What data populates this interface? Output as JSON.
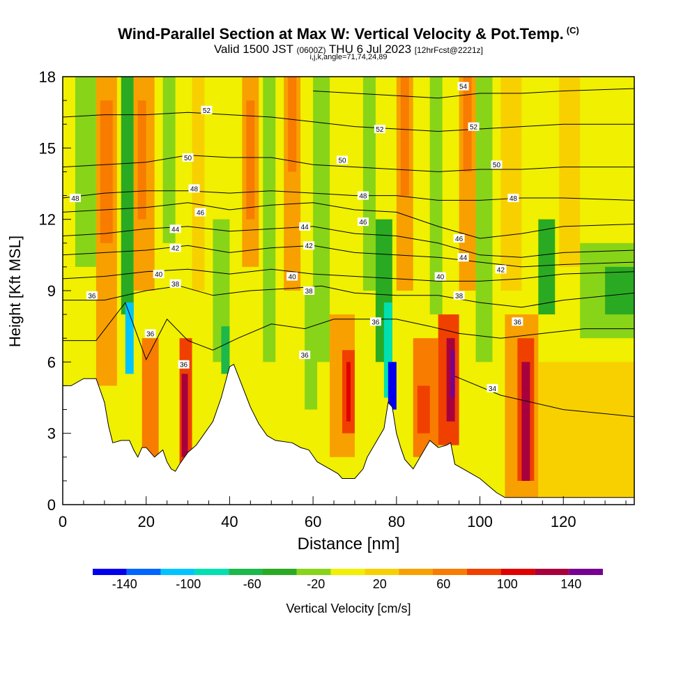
{
  "header": {
    "title": "Wind-Parallel Section at Max W: Vertical Velocity & Pot.Temp.",
    "title_mark": "(C)",
    "valid_prefix": "Valid 1500 JST",
    "valid_zulu": "(0600Z)",
    "valid_date": "THU 6 Jul 2023",
    "forecast_tag": "[12hrFcst@2221z]",
    "subline": "i,j,k,angle=71,74,24,89"
  },
  "chart_data": {
    "type": "heatmap",
    "title": "Wind-Parallel Section at Max W: Vertical Velocity & Pot.Temp.",
    "xlabel": "Distance [nm]",
    "ylabel": "Height [Kft MSL]",
    "xlim": [
      0,
      137
    ],
    "ylim": [
      0,
      18
    ],
    "x_ticks": [
      "0",
      "20",
      "40",
      "60",
      "80",
      "100",
      "120"
    ],
    "y_ticks": [
      "0",
      "3",
      "6",
      "9",
      "12",
      "15",
      "18"
    ],
    "colorbar": {
      "label": "Vertical Velocity [cm/s]",
      "tick_labels": [
        "-140",
        "-100",
        "-60",
        "-20",
        "20",
        "60",
        "100",
        "140"
      ],
      "levels": [
        -160,
        -140,
        -120,
        -100,
        -80,
        -60,
        -40,
        -20,
        0,
        20,
        40,
        60,
        80,
        100,
        120,
        140,
        160
      ],
      "colors": [
        "#0000ee",
        "#0066ff",
        "#00c4ff",
        "#00e0b0",
        "#1cb84a",
        "#2aaa22",
        "#88d418",
        "#f0f000",
        "#f8d000",
        "#f8a000",
        "#f87c00",
        "#f04000",
        "#e00000",
        "#a8003c",
        "#780090"
      ]
    },
    "terrain_kft": [
      [
        0,
        5.0
      ],
      [
        2,
        5.0
      ],
      [
        5,
        5.3
      ],
      [
        8,
        5.3
      ],
      [
        10,
        4.3
      ],
      [
        11,
        3.3
      ],
      [
        12,
        2.6
      ],
      [
        14,
        2.7
      ],
      [
        16,
        2.7
      ],
      [
        17,
        2.3
      ],
      [
        18,
        2.0
      ],
      [
        19,
        2.4
      ],
      [
        20,
        2.4
      ],
      [
        22,
        2.0
      ],
      [
        24,
        2.3
      ],
      [
        25,
        1.8
      ],
      [
        26,
        1.5
      ],
      [
        27,
        1.4
      ],
      [
        28,
        1.7
      ],
      [
        30,
        2.2
      ],
      [
        32,
        2.5
      ],
      [
        34,
        3.0
      ],
      [
        36,
        3.5
      ],
      [
        38,
        4.5
      ],
      [
        40,
        5.8
      ],
      [
        41,
        5.9
      ],
      [
        43,
        5.0
      ],
      [
        45,
        4.1
      ],
      [
        47,
        3.4
      ],
      [
        49,
        2.9
      ],
      [
        51,
        2.7
      ],
      [
        55,
        2.6
      ],
      [
        57,
        2.4
      ],
      [
        59,
        2.3
      ],
      [
        61,
        1.8
      ],
      [
        63,
        1.6
      ],
      [
        64,
        1.5
      ],
      [
        66,
        1.3
      ],
      [
        67,
        1.1
      ],
      [
        70,
        1.1
      ],
      [
        72,
        1.5
      ],
      [
        73,
        2.0
      ],
      [
        75,
        2.6
      ],
      [
        77,
        3.2
      ],
      [
        78,
        4.3
      ],
      [
        79,
        4.1
      ],
      [
        80,
        3.0
      ],
      [
        81,
        2.4
      ],
      [
        82,
        1.9
      ],
      [
        83,
        1.7
      ],
      [
        84,
        1.5
      ],
      [
        86,
        2.1
      ],
      [
        88,
        2.7
      ],
      [
        90,
        2.4
      ],
      [
        92,
        2.5
      ],
      [
        93,
        2.6
      ],
      [
        94,
        1.7
      ],
      [
        96,
        1.5
      ],
      [
        98,
        1.3
      ],
      [
        100,
        1.1
      ],
      [
        102,
        0.8
      ],
      [
        104,
        0.5
      ],
      [
        106,
        0.3
      ],
      [
        137,
        0.3
      ]
    ],
    "velocity_cells": [
      {
        "x0": 0,
        "x1": 137,
        "y0": 0,
        "y1": 18,
        "v": -10
      },
      {
        "x0": 3,
        "x1": 8,
        "y0": 10,
        "y1": 18,
        "v": -30
      },
      {
        "x0": 8,
        "x1": 13,
        "y0": 5,
        "y1": 18,
        "v": 30
      },
      {
        "x0": 9,
        "x1": 12,
        "y0": 11,
        "y1": 17,
        "v": 50
      },
      {
        "x0": 14,
        "x1": 17,
        "y0": 8,
        "y1": 18,
        "v": -50
      },
      {
        "x0": 15,
        "x1": 17,
        "y0": 5.5,
        "y1": 8.5,
        "v": -110
      },
      {
        "x0": 17,
        "x1": 22,
        "y0": 9,
        "y1": 18,
        "v": 30
      },
      {
        "x0": 18,
        "x1": 20,
        "y0": 12,
        "y1": 17,
        "v": 50
      },
      {
        "x0": 19,
        "x1": 23,
        "y0": 2,
        "y1": 7,
        "v": 40
      },
      {
        "x0": 24,
        "x1": 27,
        "y0": 11,
        "y1": 18,
        "v": -30
      },
      {
        "x0": 28,
        "x1": 31,
        "y0": 1.5,
        "y1": 7,
        "v": 70
      },
      {
        "x0": 28.5,
        "x1": 30,
        "y0": 2,
        "y1": 5.5,
        "v": 110
      },
      {
        "x0": 31,
        "x1": 34,
        "y0": 9,
        "y1": 18,
        "v": 10
      },
      {
        "x0": 36,
        "x1": 40,
        "y0": 6,
        "y1": 12,
        "v": -30
      },
      {
        "x0": 38,
        "x1": 40,
        "y0": 5.5,
        "y1": 7.5,
        "v": -70
      },
      {
        "x0": 43,
        "x1": 47,
        "y0": 10,
        "y1": 18,
        "v": 30
      },
      {
        "x0": 44,
        "x1": 46,
        "y0": 12,
        "y1": 17,
        "v": 50
      },
      {
        "x0": 48,
        "x1": 51,
        "y0": 6,
        "y1": 18,
        "v": -30
      },
      {
        "x0": 53,
        "x1": 57,
        "y0": 9,
        "y1": 18,
        "v": 30
      },
      {
        "x0": 54,
        "x1": 56,
        "y0": 14,
        "y1": 18,
        "v": 50
      },
      {
        "x0": 58,
        "x1": 61,
        "y0": 4,
        "y1": 9,
        "v": -30
      },
      {
        "x0": 60,
        "x1": 64,
        "y0": 6,
        "y1": 18,
        "v": -30
      },
      {
        "x0": 64,
        "x1": 70,
        "y0": 2,
        "y1": 8,
        "v": 30
      },
      {
        "x0": 67,
        "x1": 70,
        "y0": 3,
        "y1": 6.5,
        "v": 70
      },
      {
        "x0": 68,
        "x1": 69,
        "y0": 3.5,
        "y1": 6,
        "v": 90
      },
      {
        "x0": 72,
        "x1": 75,
        "y0": 9,
        "y1": 18,
        "v": -30
      },
      {
        "x0": 75,
        "x1": 79,
        "y0": 6,
        "y1": 12,
        "v": -50
      },
      {
        "x0": 77,
        "x1": 79,
        "y0": 4.5,
        "y1": 8.5,
        "v": -90
      },
      {
        "x0": 78,
        "x1": 80,
        "y0": 4,
        "y1": 6,
        "v": -150
      },
      {
        "x0": 80,
        "x1": 84,
        "y0": 9,
        "y1": 18,
        "v": 30
      },
      {
        "x0": 81,
        "x1": 83,
        "y0": 13,
        "y1": 18,
        "v": 50
      },
      {
        "x0": 84,
        "x1": 90,
        "y0": 2,
        "y1": 7,
        "v": 50
      },
      {
        "x0": 85,
        "x1": 88,
        "y0": 3,
        "y1": 5,
        "v": 70
      },
      {
        "x0": 88,
        "x1": 91,
        "y0": 8,
        "y1": 18,
        "v": -30
      },
      {
        "x0": 90,
        "x1": 95,
        "y0": 2.5,
        "y1": 8,
        "v": 70
      },
      {
        "x0": 92,
        "x1": 94,
        "y0": 3.5,
        "y1": 7,
        "v": 110
      },
      {
        "x0": 93,
        "x1": 94,
        "y0": 4.5,
        "y1": 6.5,
        "v": 150
      },
      {
        "x0": 95,
        "x1": 99,
        "y0": 9,
        "y1": 18,
        "v": 30
      },
      {
        "x0": 96,
        "x1": 98,
        "y0": 14,
        "y1": 18,
        "v": 50
      },
      {
        "x0": 99,
        "x1": 103,
        "y0": 6,
        "y1": 18,
        "v": -30
      },
      {
        "x0": 105,
        "x1": 110,
        "y0": 9,
        "y1": 18,
        "v": 10
      },
      {
        "x0": 106,
        "x1": 114,
        "y0": 0.3,
        "y1": 8,
        "v": 30
      },
      {
        "x0": 109,
        "x1": 113,
        "y0": 1,
        "y1": 7,
        "v": 70
      },
      {
        "x0": 110,
        "x1": 112,
        "y0": 1,
        "y1": 6,
        "v": 110
      },
      {
        "x0": 114,
        "x1": 118,
        "y0": 8,
        "y1": 12,
        "v": -50
      },
      {
        "x0": 119,
        "x1": 124,
        "y0": 10,
        "y1": 18,
        "v": 10
      },
      {
        "x0": 124,
        "x1": 137,
        "y0": 7,
        "y1": 11,
        "v": -30
      },
      {
        "x0": 130,
        "x1": 137,
        "y0": 8,
        "y1": 10,
        "v": -50
      },
      {
        "x0": 114,
        "x1": 137,
        "y0": 0.3,
        "y1": 6,
        "v": 10
      }
    ],
    "theta_contours": [
      {
        "value": 34,
        "x": [
          94,
          105,
          120,
          137
        ],
        "y": [
          5.4,
          4.6,
          4.0,
          3.7
        ]
      },
      {
        "value": 36,
        "x": [
          0,
          8,
          15,
          20,
          25,
          30,
          36,
          42,
          50,
          58,
          65,
          72,
          80,
          88,
          95,
          105,
          115,
          125,
          137
        ],
        "y": [
          6.9,
          6.9,
          8.5,
          6.1,
          7.8,
          6.9,
          6.5,
          7.0,
          7.6,
          7.4,
          7.8,
          7.8,
          7.8,
          7.5,
          7.2,
          7.0,
          7.2,
          7.4,
          7.4
        ]
      },
      {
        "value": 38,
        "x": [
          0,
          10,
          20,
          28,
          36,
          45,
          55,
          62,
          70,
          80,
          90,
          100,
          110,
          120,
          137
        ],
        "y": [
          8.6,
          8.6,
          9.0,
          9.2,
          8.8,
          9.0,
          9.1,
          9.2,
          8.9,
          8.8,
          8.8,
          8.5,
          8.3,
          8.6,
          8.9
        ]
      },
      {
        "value": 40,
        "x": [
          0,
          10,
          20,
          30,
          40,
          50,
          60,
          70,
          80,
          90,
          100,
          110,
          120,
          137
        ],
        "y": [
          9.5,
          9.6,
          9.8,
          9.9,
          9.7,
          9.9,
          9.7,
          9.6,
          9.5,
          9.4,
          9.4,
          9.5,
          9.7,
          9.8
        ]
      },
      {
        "value": 42,
        "x": [
          0,
          10,
          20,
          30,
          40,
          50,
          60,
          70,
          80,
          90,
          100,
          110,
          120,
          137
        ],
        "y": [
          10.5,
          10.6,
          10.7,
          10.9,
          10.6,
          10.8,
          10.9,
          10.6,
          10.5,
          10.4,
          10.2,
          10.0,
          10.1,
          10.2
        ]
      },
      {
        "value": 44,
        "x": [
          0,
          10,
          20,
          30,
          40,
          50,
          60,
          70,
          80,
          90,
          100,
          110,
          120,
          137
        ],
        "y": [
          11.3,
          11.4,
          11.6,
          11.7,
          11.5,
          11.6,
          11.7,
          11.4,
          11.3,
          11.0,
          10.5,
          10.4,
          10.6,
          10.7
        ]
      },
      {
        "value": 46,
        "x": [
          0,
          10,
          20,
          30,
          40,
          50,
          60,
          70,
          80,
          90,
          100,
          110,
          120,
          137
        ],
        "y": [
          12.3,
          12.4,
          12.5,
          12.7,
          12.4,
          12.6,
          12.7,
          12.4,
          12.3,
          11.7,
          11.2,
          11.4,
          11.7,
          11.8
        ]
      },
      {
        "value": 48,
        "x": [
          0,
          10,
          20,
          30,
          40,
          50,
          60,
          70,
          80,
          90,
          100,
          110,
          120,
          137
        ],
        "y": [
          12.9,
          13.1,
          13.2,
          13.2,
          13.1,
          13.2,
          13.1,
          13.0,
          13.0,
          12.8,
          12.8,
          12.9,
          12.9,
          12.8
        ]
      },
      {
        "value": 50,
        "x": [
          0,
          10,
          20,
          30,
          40,
          50,
          60,
          70,
          80,
          90,
          100,
          110,
          120,
          137
        ],
        "y": [
          14.2,
          14.3,
          14.4,
          14.7,
          14.6,
          14.6,
          14.3,
          14.2,
          14.1,
          14.0,
          14.1,
          14.1,
          14.2,
          14.2
        ]
      },
      {
        "value": 52,
        "x": [
          0,
          10,
          20,
          30,
          40,
          50,
          60,
          70,
          80,
          90,
          100,
          110,
          120,
          137
        ],
        "y": [
          16.3,
          16.4,
          16.4,
          16.5,
          16.4,
          16.3,
          16.1,
          15.9,
          15.8,
          15.7,
          15.8,
          15.9,
          16.0,
          16.0
        ]
      },
      {
        "value": 54,
        "x": [
          60,
          70,
          80,
          90,
          100,
          110,
          120,
          137
        ],
        "y": [
          17.4,
          17.3,
          17.2,
          17.1,
          17.3,
          17.3,
          17.4,
          17.5
        ]
      }
    ],
    "contour_labels": [
      {
        "text": "48",
        "x": 3,
        "y": 12.9
      },
      {
        "text": "52",
        "x": 34.5,
        "y": 16.6
      },
      {
        "text": "50",
        "x": 30,
        "y": 14.6
      },
      {
        "text": "48",
        "x": 31.5,
        "y": 13.3
      },
      {
        "text": "46",
        "x": 33,
        "y": 12.3
      },
      {
        "text": "44",
        "x": 27,
        "y": 11.6
      },
      {
        "text": "42",
        "x": 27,
        "y": 10.8
      },
      {
        "text": "40",
        "x": 23,
        "y": 9.7
      },
      {
        "text": "38",
        "x": 27,
        "y": 9.3
      },
      {
        "text": "36",
        "x": 7,
        "y": 8.8
      },
      {
        "text": "36",
        "x": 21,
        "y": 7.2
      },
      {
        "text": "36",
        "x": 29,
        "y": 5.9
      },
      {
        "text": "44",
        "x": 58,
        "y": 11.7
      },
      {
        "text": "42",
        "x": 59,
        "y": 10.9
      },
      {
        "text": "40",
        "x": 55,
        "y": 9.6
      },
      {
        "text": "38",
        "x": 59,
        "y": 9.0
      },
      {
        "text": "36",
        "x": 58,
        "y": 6.3
      },
      {
        "text": "50",
        "x": 67,
        "y": 14.5
      },
      {
        "text": "48",
        "x": 72,
        "y": 13.0
      },
      {
        "text": "46",
        "x": 72,
        "y": 11.9
      },
      {
        "text": "52",
        "x": 76,
        "y": 15.8
      },
      {
        "text": "36",
        "x": 75,
        "y": 7.7
      },
      {
        "text": "54",
        "x": 96,
        "y": 17.6
      },
      {
        "text": "52",
        "x": 98.5,
        "y": 15.9
      },
      {
        "text": "50",
        "x": 104,
        "y": 14.3
      },
      {
        "text": "48",
        "x": 108,
        "y": 12.9
      },
      {
        "text": "46",
        "x": 95,
        "y": 11.2
      },
      {
        "text": "44",
        "x": 96,
        "y": 10.4
      },
      {
        "text": "42",
        "x": 105,
        "y": 9.9
      },
      {
        "text": "40",
        "x": 90.5,
        "y": 9.6
      },
      {
        "text": "38",
        "x": 95,
        "y": 8.8
      },
      {
        "text": "36",
        "x": 109,
        "y": 7.7
      },
      {
        "text": "34",
        "x": 103,
        "y": 4.9
      }
    ]
  }
}
